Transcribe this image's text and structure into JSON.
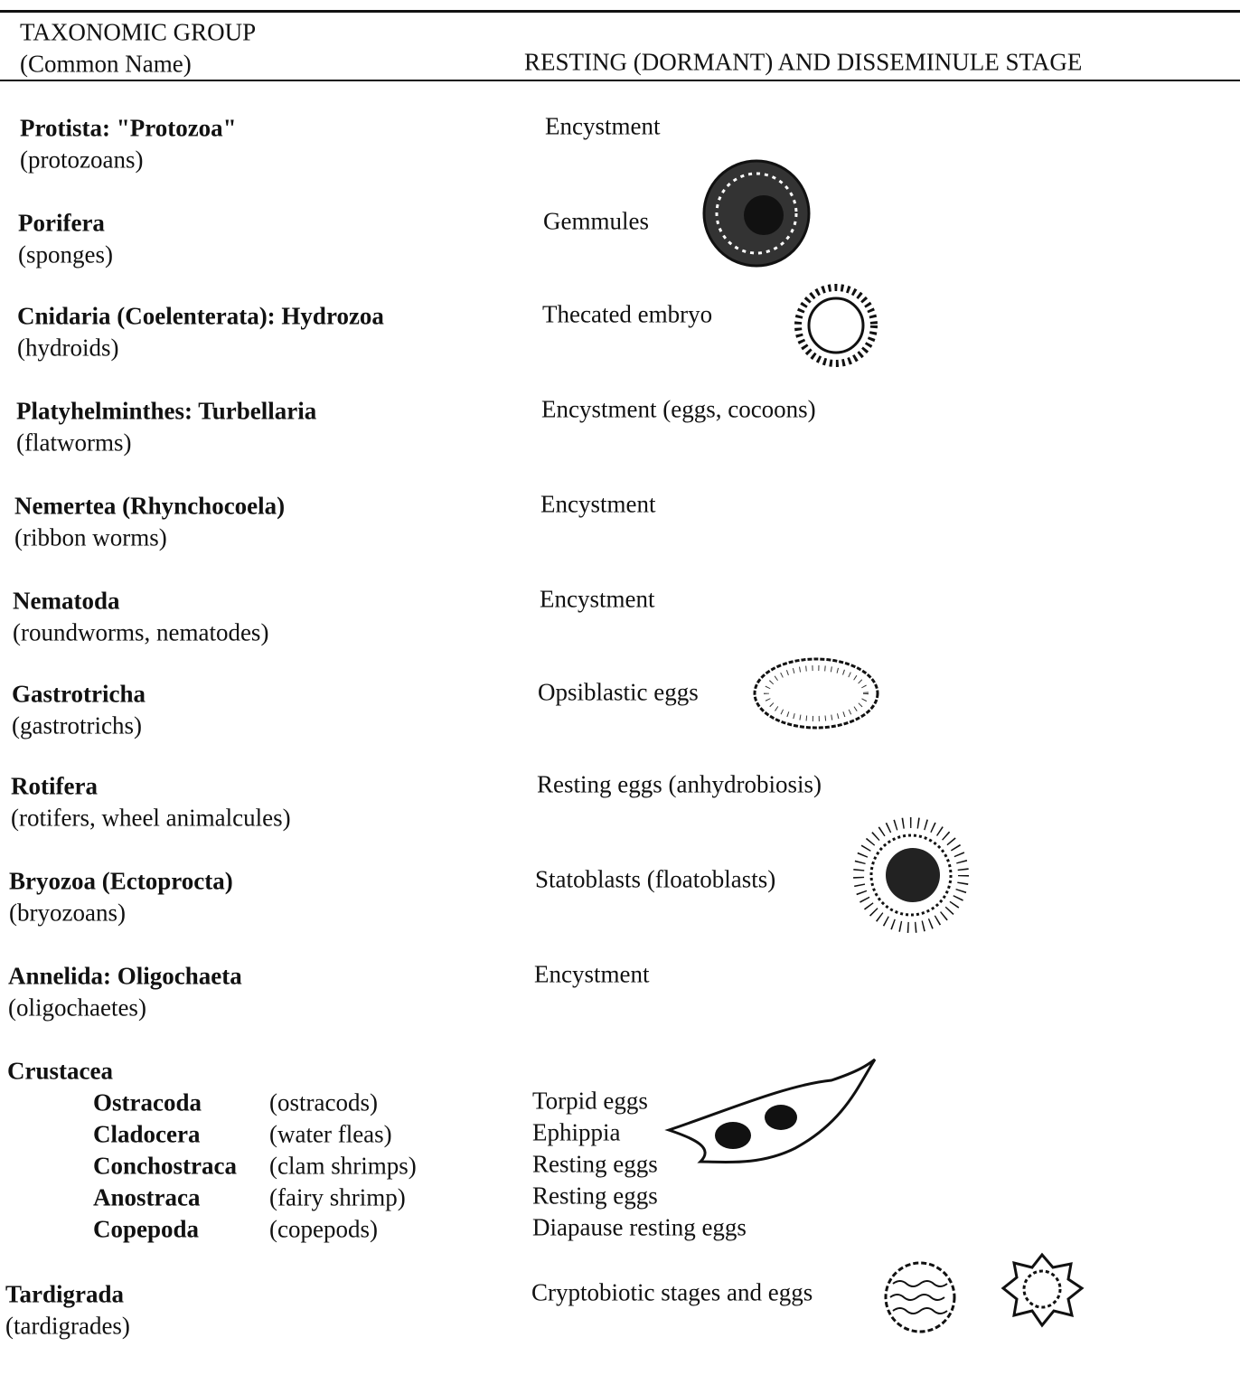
{
  "header": {
    "group_title": "TAXONOMIC GROUP",
    "group_subtitle": "(Common Name)",
    "stage_title": "RESTING (DORMANT) AND DISSEMINULE STAGE"
  },
  "rows": [
    {
      "group": "Protista: \"Protozoa\"",
      "common": "(protozoans)",
      "stage": "Encystment"
    },
    {
      "group": "Porifera",
      "common": "(sponges)",
      "stage": "Gemmules"
    },
    {
      "group": "Cnidaria (Coelenterata): Hydrozoa",
      "common": "(hydroids)",
      "stage": "Thecated embryo"
    },
    {
      "group": "Platyhelminthes: Turbellaria",
      "common": "(flatworms)",
      "stage": "Encystment (eggs, cocoons)"
    },
    {
      "group": "Nemertea (Rhynchocoela)",
      "common": "(ribbon worms)",
      "stage": "Encystment"
    },
    {
      "group": "Nematoda",
      "common": "(roundworms, nematodes)",
      "stage": "Encystment"
    },
    {
      "group": "Gastrotricha",
      "common": "(gastrotrichs)",
      "stage": "Opsiblastic eggs"
    },
    {
      "group": "Rotifera",
      "common": "(rotifers, wheel animalcules)",
      "stage": "Resting eggs (anhydrobiosis)"
    },
    {
      "group": "Bryozoa (Ectoprocta)",
      "common": "(bryozoans)",
      "stage": "Statoblasts (floatoblasts)"
    },
    {
      "group": "Annelida: Oligochaeta",
      "common": "(oligochaetes)",
      "stage": "Encystment"
    },
    {
      "group": "Crustacea",
      "subgroups": [
        {
          "group": "Ostracoda",
          "common": "(ostracods)",
          "stage": "Torpid eggs"
        },
        {
          "group": "Cladocera",
          "common": "(water fleas)",
          "stage": "Ephippia"
        },
        {
          "group": "Conchostraca",
          "common": "(clam shrimps)",
          "stage": "Resting eggs"
        },
        {
          "group": "Anostraca",
          "common": "(fairy shrimp)",
          "stage": "Resting eggs"
        },
        {
          "group": "Copepoda",
          "common": "(copepods)",
          "stage": "Diapause resting eggs"
        }
      ]
    },
    {
      "group": "Tardigrada",
      "common": "(tardigrades)",
      "stage": "Cryptobiotic stages and eggs"
    }
  ]
}
